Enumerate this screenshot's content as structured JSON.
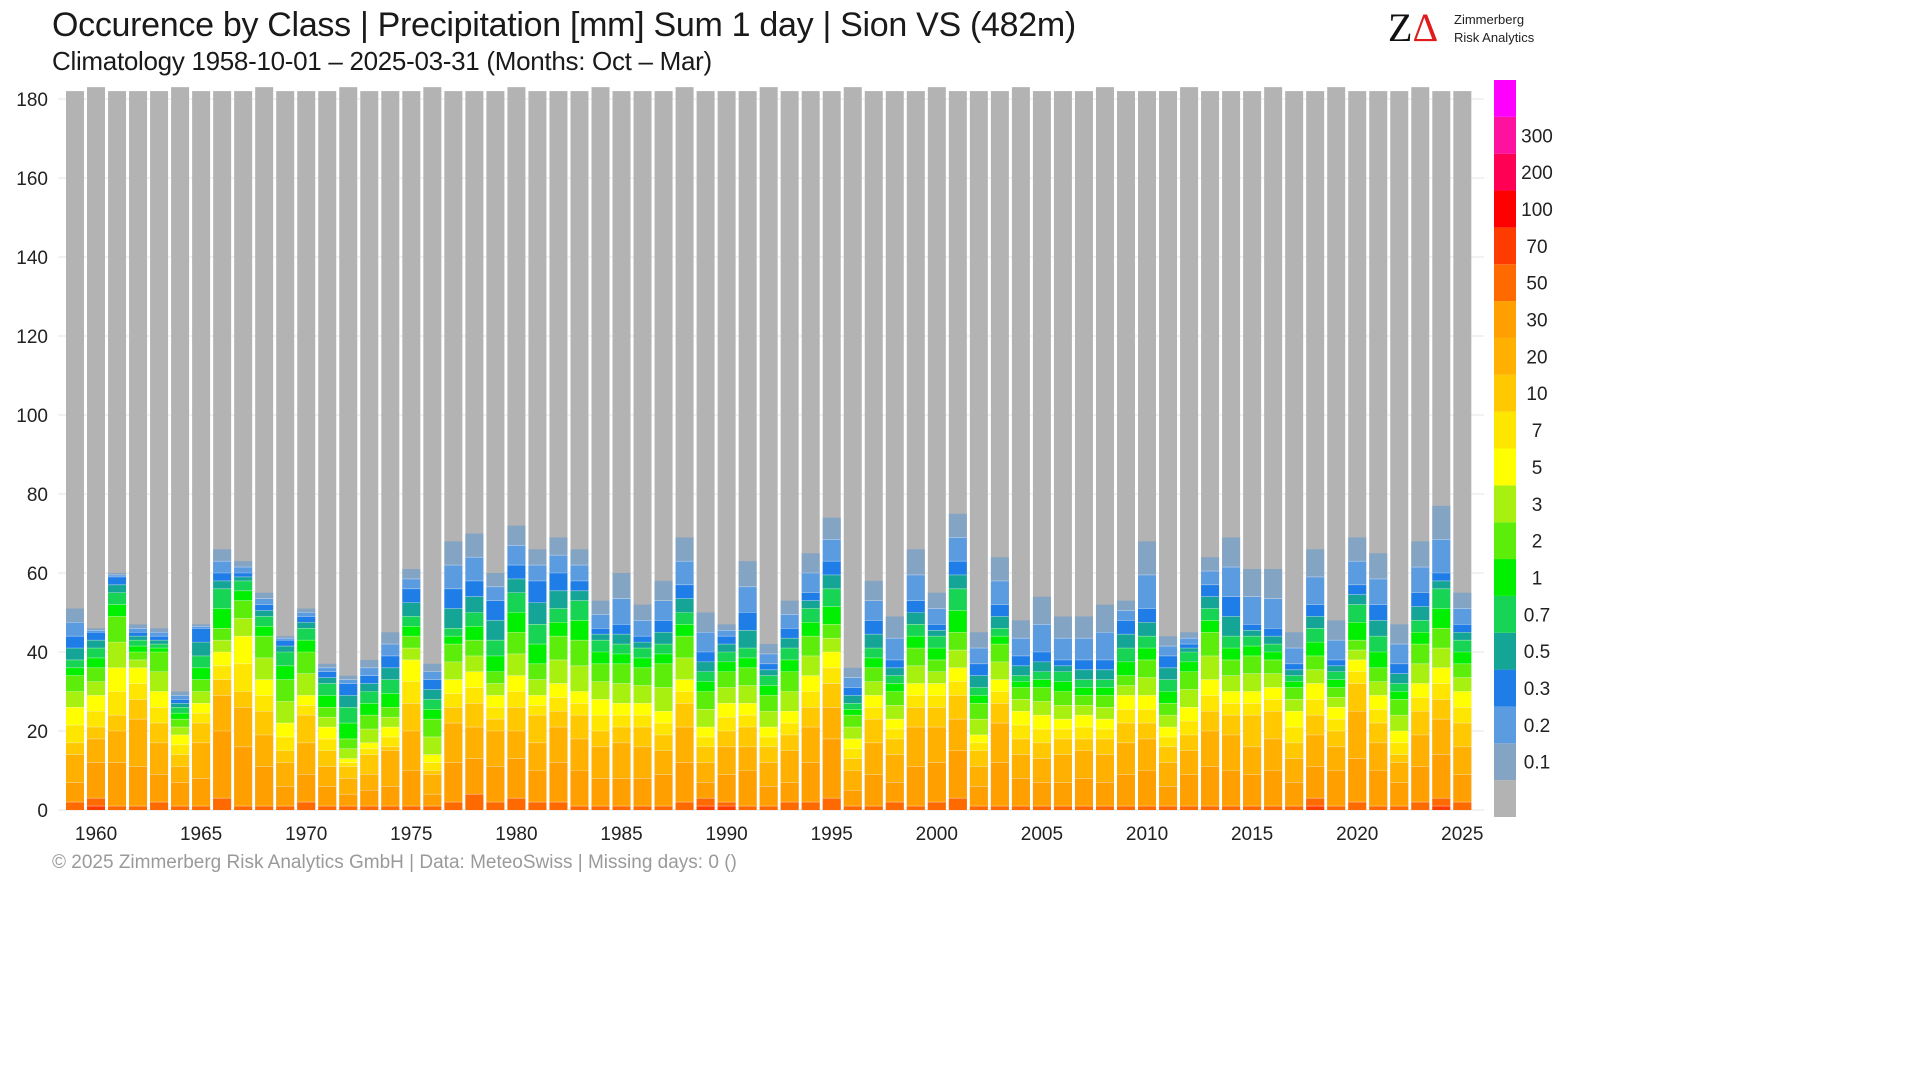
{
  "header": {
    "title": "Occurence by Class | Precipitation [mm] Sum 1 day | Sion  VS (482m)",
    "subtitle": "Climatology 1958-10-01 – 2025-03-31 (Months: Oct – Mar)"
  },
  "logo": {
    "mark_z": "Z",
    "mark_delta": "Δ",
    "line1": "Zimmerberg",
    "line2": "Risk Analytics"
  },
  "footer": {
    "text": "©  2025 Zimmerberg Risk Analytics GmbH | Data: MeteoSwiss | Missing days: 0 ()"
  },
  "chart_data": {
    "type": "bar",
    "stacked": true,
    "x_label_seasons": [
      1960,
      1965,
      1970,
      1975,
      1980,
      1985,
      1990,
      1995,
      2000,
      2005,
      2010,
      2015,
      2020,
      2025
    ],
    "ylim": [
      0,
      182
    ],
    "y_ticks": [
      0,
      20,
      40,
      60,
      80,
      100,
      120,
      140,
      160,
      180
    ],
    "grid": true,
    "classes": [
      {
        "label": "",
        "color": "#b3b3b3"
      },
      {
        "label": "0.1",
        "color": "#84a4c4"
      },
      {
        "label": "0.2",
        "color": "#5b9be0"
      },
      {
        "label": "0.3",
        "color": "#1f7de8"
      },
      {
        "label": "0.5",
        "color": "#15a596"
      },
      {
        "label": "0.7",
        "color": "#18d455"
      },
      {
        "label": "1",
        "color": "#00f000"
      },
      {
        "label": "2",
        "color": "#5ced0a"
      },
      {
        "label": "3",
        "color": "#a8f010"
      },
      {
        "label": "5",
        "color": "#ffff00"
      },
      {
        "label": "7",
        "color": "#ffe600"
      },
      {
        "label": "10",
        "color": "#ffc800"
      },
      {
        "label": "20",
        "color": "#ffb000"
      },
      {
        "label": "30",
        "color": "#ffa000"
      },
      {
        "label": "50",
        "color": "#ff6a00"
      },
      {
        "label": "70",
        "color": "#ff3c00"
      },
      {
        "label": "100",
        "color": "#ff0000"
      },
      {
        "label": "200",
        "color": "#ff0055"
      },
      {
        "label": "300",
        "color": "#ff11a0"
      },
      {
        "label": "",
        "color": "#ff00ff"
      }
    ],
    "series": [
      {
        "season": 1959,
        "total": 182,
        "wet": 51,
        "bins": [
          51,
          44,
          38,
          34,
          26,
          17,
          14,
          7,
          2,
          0
        ]
      },
      {
        "season": 1960,
        "total": 183,
        "wet": 46,
        "bins": [
          46,
          45,
          41,
          36,
          29,
          21,
          18,
          12,
          3,
          1
        ]
      },
      {
        "season": 1961,
        "total": 182,
        "wet": 60,
        "bins": [
          60,
          59,
          55,
          49,
          36,
          24,
          20,
          12,
          1,
          0
        ]
      },
      {
        "season": 1962,
        "total": 182,
        "wet": 47,
        "bins": [
          47,
          45,
          43,
          40,
          36,
          28,
          23,
          11,
          1,
          0
        ]
      },
      {
        "season": 1963,
        "total": 182,
        "wet": 46,
        "bins": [
          46,
          44,
          42,
          40,
          30,
          22,
          17,
          9,
          2,
          0
        ]
      },
      {
        "season": 1964,
        "total": 183,
        "wet": 30,
        "bins": [
          30,
          28,
          26,
          23,
          19,
          14,
          11,
          7,
          1,
          0
        ]
      },
      {
        "season": 1965,
        "total": 182,
        "wet": 47,
        "bins": [
          47,
          46,
          39,
          33,
          27,
          22,
          17,
          8,
          1,
          0
        ]
      },
      {
        "season": 1966,
        "total": 182,
        "wet": 66,
        "bins": [
          66,
          60,
          56,
          46,
          40,
          33,
          29,
          20,
          3,
          0
        ]
      },
      {
        "season": 1967,
        "total": 182,
        "wet": 63,
        "bins": [
          63,
          60,
          58,
          53,
          44,
          30,
          26,
          16,
          1,
          0
        ]
      },
      {
        "season": 1968,
        "total": 183,
        "wet": 55,
        "bins": [
          55,
          52,
          49,
          44,
          33,
          25,
          19,
          11,
          1,
          0
        ]
      },
      {
        "season": 1969,
        "total": 182,
        "wet": 44,
        "bins": [
          44,
          43,
          40,
          33,
          22,
          15,
          12,
          6,
          1,
          0
        ]
      },
      {
        "season": 1970,
        "total": 182,
        "wet": 51,
        "bins": [
          51,
          49,
          46,
          40,
          29,
          24,
          17,
          9,
          2,
          0
        ]
      },
      {
        "season": 1971,
        "total": 182,
        "wet": 37,
        "bins": [
          37,
          35,
          32,
          26,
          21,
          15,
          11,
          6,
          1,
          0
        ]
      },
      {
        "season": 1972,
        "total": 183,
        "wet": 34,
        "bins": [
          34,
          32,
          26,
          18,
          13,
          11,
          8,
          4,
          1,
          0
        ]
      },
      {
        "season": 1973,
        "total": 182,
        "wet": 38,
        "bins": [
          38,
          34,
          30,
          24,
          17,
          14,
          9,
          5,
          1,
          0
        ]
      },
      {
        "season": 1974,
        "total": 182,
        "wet": 45,
        "bins": [
          45,
          39,
          33,
          26,
          21,
          16,
          15,
          6,
          1,
          0
        ]
      },
      {
        "season": 1975,
        "total": 182,
        "wet": 61,
        "bins": [
          61,
          56,
          49,
          44,
          38,
          27,
          20,
          10,
          1,
          0
        ]
      },
      {
        "season": 1976,
        "total": 183,
        "wet": 37,
        "bins": [
          37,
          33,
          28,
          23,
          14,
          10,
          9,
          4,
          1,
          0
        ]
      },
      {
        "season": 1977,
        "total": 182,
        "wet": 68,
        "bins": [
          68,
          56,
          46,
          42,
          33,
          26,
          22,
          12,
          2,
          0
        ]
      },
      {
        "season": 1978,
        "total": 182,
        "wet": 70,
        "bins": [
          70,
          58,
          50,
          43,
          35,
          27,
          21,
          13,
          4,
          0
        ]
      },
      {
        "season": 1979,
        "total": 182,
        "wet": 60,
        "bins": [
          60,
          53,
          43,
          35,
          29,
          23,
          20,
          11,
          2,
          0
        ]
      },
      {
        "season": 1980,
        "total": 183,
        "wet": 72,
        "bins": [
          72,
          62,
          55,
          45,
          34,
          26,
          20,
          13,
          3,
          0
        ]
      },
      {
        "season": 1981,
        "total": 182,
        "wet": 66,
        "bins": [
          66,
          58,
          47,
          37,
          29,
          24,
          17,
          10,
          2,
          0
        ]
      },
      {
        "season": 1982,
        "total": 182,
        "wet": 69,
        "bins": [
          69,
          60,
          51,
          44,
          32,
          25,
          21,
          12,
          2,
          0
        ]
      },
      {
        "season": 1983,
        "total": 182,
        "wet": 66,
        "bins": [
          66,
          58,
          53,
          43,
          30,
          24,
          18,
          10,
          1,
          0
        ]
      },
      {
        "season": 1984,
        "total": 183,
        "wet": 53,
        "bins": [
          53,
          46,
          43,
          37,
          28,
          20,
          16,
          8,
          1,
          0
        ]
      },
      {
        "season": 1985,
        "total": 182,
        "wet": 60,
        "bins": [
          60,
          47,
          42,
          37,
          27,
          21,
          17,
          8,
          1,
          0
        ]
      },
      {
        "season": 1986,
        "total": 182,
        "wet": 52,
        "bins": [
          52,
          44,
          41,
          36,
          27,
          21,
          16,
          8,
          1,
          0
        ]
      },
      {
        "season": 1987,
        "total": 182,
        "wet": 58,
        "bins": [
          58,
          48,
          42,
          37,
          25,
          19,
          15,
          9,
          1,
          0
        ]
      },
      {
        "season": 1988,
        "total": 183,
        "wet": 69,
        "bins": [
          69,
          57,
          50,
          44,
          33,
          27,
          21,
          12,
          2,
          0
        ]
      },
      {
        "season": 1989,
        "total": 182,
        "wet": 50,
        "bins": [
          50,
          40,
          35,
          30,
          21,
          16,
          12,
          7,
          3,
          1
        ]
      },
      {
        "season": 1990,
        "total": 182,
        "wet": 47,
        "bins": [
          47,
          44,
          40,
          35,
          27,
          20,
          16,
          9,
          2,
          1
        ]
      },
      {
        "season": 1991,
        "total": 182,
        "wet": 63,
        "bins": [
          63,
          50,
          41,
          36,
          27,
          21,
          16,
          10,
          1,
          0
        ]
      },
      {
        "season": 1992,
        "total": 183,
        "wet": 42,
        "bins": [
          42,
          37,
          34,
          29,
          21,
          16,
          12,
          6,
          1,
          0
        ]
      },
      {
        "season": 1993,
        "total": 182,
        "wet": 53,
        "bins": [
          53,
          46,
          41,
          35,
          25,
          19,
          15,
          7,
          2,
          0
        ]
      },
      {
        "season": 1994,
        "total": 182,
        "wet": 65,
        "bins": [
          65,
          55,
          51,
          44,
          34,
          26,
          21,
          12,
          2,
          0
        ]
      },
      {
        "season": 1995,
        "total": 182,
        "wet": 74,
        "bins": [
          74,
          63,
          56,
          47,
          40,
          32,
          26,
          18,
          3,
          0
        ]
      },
      {
        "season": 1996,
        "total": 183,
        "wet": 36,
        "bins": [
          36,
          31,
          27,
          24,
          18,
          13,
          10,
          5,
          1,
          0
        ]
      },
      {
        "season": 1997,
        "total": 182,
        "wet": 58,
        "bins": [
          58,
          48,
          41,
          36,
          29,
          23,
          17,
          9,
          1,
          0
        ]
      },
      {
        "season": 1998,
        "total": 182,
        "wet": 49,
        "bins": [
          49,
          38,
          34,
          30,
          23,
          18,
          14,
          7,
          2,
          0
        ]
      },
      {
        "season": 1999,
        "total": 182,
        "wet": 66,
        "bins": [
          66,
          53,
          47,
          41,
          32,
          26,
          21,
          11,
          1,
          0
        ]
      },
      {
        "season": 2000,
        "total": 183,
        "wet": 55,
        "bins": [
          55,
          47,
          44,
          38,
          32,
          26,
          21,
          12,
          2,
          0
        ]
      },
      {
        "season": 2001,
        "total": 182,
        "wet": 75,
        "bins": [
          75,
          63,
          56,
          45,
          36,
          29,
          23,
          15,
          3,
          0
        ]
      },
      {
        "season": 2002,
        "total": 182,
        "wet": 45,
        "bins": [
          45,
          37,
          31,
          27,
          19,
          15,
          11,
          6,
          1,
          0
        ]
      },
      {
        "season": 2003,
        "total": 182,
        "wet": 64,
        "bins": [
          64,
          52,
          46,
          42,
          33,
          27,
          22,
          12,
          1,
          0
        ]
      },
      {
        "season": 2004,
        "total": 183,
        "wet": 48,
        "bins": [
          48,
          39,
          34,
          31,
          25,
          18,
          14,
          8,
          1,
          0
        ]
      },
      {
        "season": 2005,
        "total": 182,
        "wet": 54,
        "bins": [
          54,
          40,
          35,
          31,
          24,
          17,
          13,
          7,
          1,
          0
        ]
      },
      {
        "season": 2006,
        "total": 182,
        "wet": 49,
        "bins": [
          49,
          38,
          35,
          30,
          23,
          18,
          14,
          7,
          1,
          0
        ]
      },
      {
        "season": 2007,
        "total": 182,
        "wet": 49,
        "bins": [
          49,
          38,
          33,
          29,
          24,
          18,
          15,
          8,
          1,
          0
        ]
      },
      {
        "season": 2008,
        "total": 183,
        "wet": 52,
        "bins": [
          52,
          38,
          33,
          29,
          23,
          18,
          14,
          7,
          1,
          0
        ]
      },
      {
        "season": 2009,
        "total": 182,
        "wet": 53,
        "bins": [
          53,
          48,
          41,
          34,
          29,
          22,
          17,
          9,
          1,
          0
        ]
      },
      {
        "season": 2010,
        "total": 182,
        "wet": 68,
        "bins": [
          68,
          51,
          44,
          38,
          29,
          22,
          18,
          10,
          1,
          0
        ]
      },
      {
        "season": 2011,
        "total": 182,
        "wet": 44,
        "bins": [
          44,
          39,
          33,
          27,
          21,
          16,
          12,
          6,
          1,
          0
        ]
      },
      {
        "season": 2012,
        "total": 183,
        "wet": 45,
        "bins": [
          45,
          42,
          40,
          35,
          26,
          19,
          15,
          9,
          1,
          0
        ]
      },
      {
        "season": 2013,
        "total": 182,
        "wet": 64,
        "bins": [
          64,
          57,
          51,
          45,
          33,
          25,
          20,
          11,
          1,
          0
        ]
      },
      {
        "season": 2014,
        "total": 182,
        "wet": 69,
        "bins": [
          69,
          54,
          44,
          38,
          30,
          24,
          19,
          10,
          1,
          0
        ]
      },
      {
        "season": 2015,
        "total": 182,
        "wet": 61,
        "bins": [
          61,
          47,
          44,
          39,
          30,
          24,
          16,
          9,
          1,
          0
        ]
      },
      {
        "season": 2016,
        "total": 183,
        "wet": 61,
        "bins": [
          61,
          46,
          42,
          38,
          31,
          25,
          18,
          10,
          1,
          0
        ]
      },
      {
        "season": 2017,
        "total": 182,
        "wet": 45,
        "bins": [
          45,
          37,
          34,
          31,
          25,
          17,
          13,
          7,
          1,
          0
        ]
      },
      {
        "season": 2018,
        "total": 182,
        "wet": 66,
        "bins": [
          66,
          52,
          46,
          39,
          32,
          24,
          19,
          11,
          3,
          1
        ]
      },
      {
        "season": 2019,
        "total": 183,
        "wet": 48,
        "bins": [
          48,
          38,
          35,
          31,
          26,
          20,
          16,
          10,
          1,
          0
        ]
      },
      {
        "season": 2020,
        "total": 182,
        "wet": 69,
        "bins": [
          69,
          57,
          52,
          43,
          38,
          32,
          25,
          13,
          2,
          0
        ]
      },
      {
        "season": 2021,
        "total": 182,
        "wet": 65,
        "bins": [
          65,
          52,
          44,
          36,
          29,
          22,
          17,
          10,
          1,
          0
        ]
      },
      {
        "season": 2022,
        "total": 182,
        "wet": 47,
        "bins": [
          47,
          37,
          32,
          28,
          20,
          14,
          12,
          7,
          1,
          0
        ]
      },
      {
        "season": 2023,
        "total": 183,
        "wet": 68,
        "bins": [
          68,
          55,
          48,
          42,
          32,
          25,
          19,
          11,
          2,
          0
        ]
      },
      {
        "season": 2024,
        "total": 182,
        "wet": 77,
        "bins": [
          77,
          60,
          56,
          46,
          36,
          28,
          23,
          14,
          3,
          1
        ]
      },
      {
        "season": 2025,
        "total": 182,
        "wet": 55,
        "bins": [
          55,
          47,
          43,
          37,
          30,
          22,
          16,
          9,
          2,
          0
        ]
      }
    ]
  }
}
